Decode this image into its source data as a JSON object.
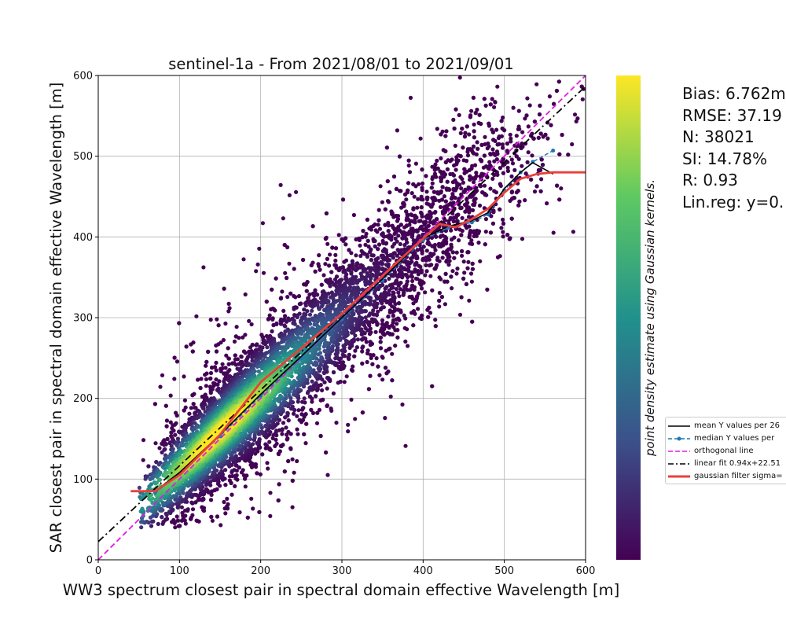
{
  "chart_data": {
    "type": "scatter",
    "title": "sentinel-1a - From 2021/08/01 to 2021/09/01",
    "xlabel": "WW3 spectrum closest pair in spectral domain effective Wavelength [m]",
    "ylabel": "SAR closest pair in spectral domain effective Wavelength [m]",
    "xlim": [
      0,
      600
    ],
    "ylim": [
      0,
      600
    ],
    "xticks": [
      "0",
      "100",
      "200",
      "300",
      "400",
      "500",
      "600"
    ],
    "yticks": [
      "0",
      "100",
      "200",
      "300",
      "400",
      "500",
      "600"
    ],
    "grid": true,
    "colorbar_label": "point density estimate using Gaussian kernels.",
    "colormap": [
      "#440154",
      "#3b528b",
      "#21918c",
      "#5ec962",
      "#fde725"
    ],
    "point_color": "#440154",
    "stats": [
      "Bias: 6.762m",
      "RMSE: 37.19",
      "N: 38021",
      "SI: 14.78%",
      "R: 0.93",
      "Lin.reg: y=0."
    ],
    "legend_position": "right",
    "legend": [
      {
        "label": "mean Y values per 26",
        "color": "#000000",
        "style": "solid"
      },
      {
        "label": "median Y values per",
        "color": "#1f77b4",
        "style": "dashed-marker"
      },
      {
        "label": "orthogonal line",
        "color": "#e31ae3",
        "style": "dashed"
      },
      {
        "label": "linear fit 0.94x+22.51",
        "color": "#000000",
        "style": "dashdot"
      },
      {
        "label": "gaussian filter sigma=",
        "color": "#e8403a",
        "style": "thick"
      }
    ],
    "orthogonal_line": {
      "x": [
        0,
        600
      ],
      "y": [
        0,
        600
      ]
    },
    "linear_fit": {
      "slope": 0.94,
      "intercept": 22.51
    },
    "mean_line": {
      "x": [
        70,
        100,
        150,
        200,
        250,
        300,
        350,
        400,
        430,
        460,
        480,
        500,
        520,
        535,
        560
      ],
      "y": [
        85,
        108,
        155,
        205,
        252,
        300,
        348,
        398,
        413,
        420,
        430,
        460,
        480,
        492,
        478
      ]
    },
    "median_line": {
      "x": [
        70,
        100,
        150,
        200,
        250,
        300,
        350,
        400,
        430,
        460,
        480,
        500,
        520,
        535,
        560
      ],
      "y": [
        83,
        106,
        153,
        203,
        250,
        298,
        346,
        396,
        411,
        418,
        428,
        458,
        480,
        493,
        507
      ]
    },
    "gaussian_line": {
      "x": [
        40,
        70,
        100,
        150,
        200,
        250,
        300,
        350,
        400,
        420,
        440,
        460,
        480,
        500,
        520,
        540,
        560,
        580,
        600
      ],
      "y": [
        85,
        85,
        105,
        155,
        220,
        262,
        305,
        352,
        398,
        416,
        412,
        422,
        435,
        455,
        472,
        478,
        480,
        480,
        480
      ]
    },
    "density_model": {
      "n_points": 9000,
      "core_sd": 20,
      "spread_sd": 32,
      "x_mode": 150
    }
  }
}
